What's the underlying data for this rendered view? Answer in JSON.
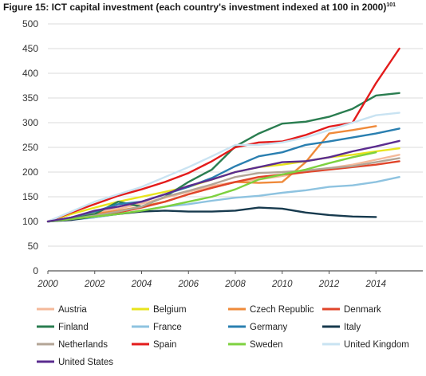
{
  "title": "Figure 15: ICT capital investment (each country's investment indexed at 100 in 2000)",
  "title_footnote": "101",
  "chart_data": {
    "type": "line",
    "title": "Figure 15: ICT capital investment (each country's investment indexed at 100 in 2000)",
    "xlabel": "",
    "ylabel": "",
    "xlim": [
      2000,
      2016
    ],
    "ylim": [
      0,
      500
    ],
    "x_ticks": [
      2000,
      2002,
      2004,
      2006,
      2008,
      2010,
      2012,
      2014
    ],
    "y_ticks": [
      0,
      50,
      100,
      150,
      200,
      250,
      300,
      350,
      400,
      450,
      500
    ],
    "grid": "horizontal",
    "legend_position": "bottom",
    "series": [
      {
        "name": "Austria",
        "color": "#f4b99a",
        "x": [
          2000,
          2001,
          2002,
          2003,
          2004,
          2005,
          2006,
          2007,
          2008,
          2009,
          2010,
          2011,
          2012,
          2013,
          2014,
          2015
        ],
        "y": [
          100,
          108,
          118,
          126,
          136,
          148,
          160,
          172,
          180,
          185,
          192,
          200,
          208,
          215,
          225,
          235
        ]
      },
      {
        "name": "Belgium",
        "color": "#e8e41c",
        "x": [
          2000,
          2001,
          2002,
          2003,
          2004,
          2005,
          2006,
          2007,
          2008,
          2009,
          2010,
          2011,
          2012,
          2013,
          2014,
          2015
        ],
        "y": [
          100,
          115,
          128,
          140,
          150,
          160,
          170,
          185,
          200,
          210,
          215,
          222,
          230,
          235,
          242,
          248
        ]
      },
      {
        "name": "Czech Republic",
        "color": "#ef8a3a",
        "x": [
          2000,
          2001,
          2002,
          2003,
          2004,
          2005,
          2006,
          2007,
          2008,
          2009,
          2010,
          2011,
          2012,
          2013,
          2014
        ],
        "y": [
          100,
          108,
          115,
          122,
          130,
          140,
          155,
          168,
          180,
          178,
          180,
          220,
          278,
          285,
          293
        ]
      },
      {
        "name": "Denmark",
        "color": "#e0452a",
        "x": [
          2000,
          2001,
          2002,
          2003,
          2004,
          2005,
          2006,
          2007,
          2008,
          2009,
          2010,
          2011,
          2012,
          2013,
          2014,
          2015
        ],
        "y": [
          100,
          105,
          112,
          118,
          128,
          140,
          155,
          168,
          180,
          190,
          195,
          200,
          205,
          210,
          215,
          222
        ]
      },
      {
        "name": "Finland",
        "color": "#2a7d50",
        "x": [
          2000,
          2001,
          2002,
          2003,
          2004,
          2005,
          2006,
          2007,
          2008,
          2009,
          2010,
          2011,
          2012,
          2013,
          2014,
          2015
        ],
        "y": [
          100,
          105,
          115,
          140,
          130,
          150,
          180,
          205,
          252,
          278,
          298,
          302,
          312,
          328,
          355,
          360
        ]
      },
      {
        "name": "France",
        "color": "#8ec3e0",
        "x": [
          2000,
          2001,
          2002,
          2003,
          2004,
          2005,
          2006,
          2007,
          2008,
          2009,
          2010,
          2011,
          2012,
          2013,
          2014,
          2015
        ],
        "y": [
          100,
          103,
          108,
          115,
          122,
          130,
          135,
          142,
          148,
          152,
          158,
          163,
          170,
          173,
          180,
          190
        ]
      },
      {
        "name": "Germany",
        "color": "#2a7fb0",
        "x": [
          2000,
          2001,
          2002,
          2003,
          2004,
          2005,
          2006,
          2007,
          2008,
          2009,
          2010,
          2011,
          2012,
          2013,
          2014,
          2015
        ],
        "y": [
          100,
          108,
          120,
          135,
          140,
          155,
          170,
          188,
          212,
          232,
          240,
          255,
          262,
          270,
          278,
          288
        ]
      },
      {
        "name": "Italy",
        "color": "#173a4e",
        "x": [
          2000,
          2001,
          2002,
          2003,
          2004,
          2005,
          2006,
          2007,
          2008,
          2009,
          2010,
          2011,
          2012,
          2013,
          2014
        ],
        "y": [
          100,
          103,
          110,
          115,
          120,
          122,
          120,
          120,
          122,
          128,
          126,
          118,
          113,
          110,
          109
        ]
      },
      {
        "name": "Netherlands",
        "color": "#b3a596",
        "x": [
          2000,
          2001,
          2002,
          2003,
          2004,
          2005,
          2006,
          2007,
          2008,
          2009,
          2010,
          2011,
          2012,
          2013,
          2014,
          2015
        ],
        "y": [
          100,
          105,
          112,
          120,
          130,
          150,
          162,
          175,
          190,
          198,
          200,
          203,
          208,
          212,
          220,
          228
        ]
      },
      {
        "name": "Spain",
        "color": "#e31b1b",
        "x": [
          2000,
          2001,
          2002,
          2003,
          2004,
          2005,
          2006,
          2007,
          2008,
          2009,
          2010,
          2011,
          2012,
          2013,
          2014,
          2015
        ],
        "y": [
          100,
          118,
          135,
          152,
          165,
          180,
          198,
          222,
          250,
          260,
          262,
          275,
          292,
          300,
          380,
          450
        ]
      },
      {
        "name": "Sweden",
        "color": "#7dd13f",
        "x": [
          2000,
          2001,
          2002,
          2003,
          2004,
          2005,
          2006,
          2007,
          2008,
          2009,
          2010,
          2011,
          2012,
          2013,
          2014
        ],
        "y": [
          100,
          105,
          110,
          115,
          122,
          130,
          140,
          150,
          165,
          185,
          195,
          205,
          218,
          230,
          240
        ]
      },
      {
        "name": "United Kingdom",
        "color": "#c9e3f2",
        "x": [
          2000,
          2001,
          2002,
          2003,
          2004,
          2005,
          2006,
          2007,
          2008,
          2009,
          2010,
          2011,
          2012,
          2013,
          2014,
          2015
        ],
        "y": [
          100,
          120,
          140,
          155,
          170,
          190,
          210,
          232,
          255,
          255,
          260,
          270,
          285,
          300,
          315,
          320
        ]
      },
      {
        "name": "United States",
        "color": "#5b2c8f",
        "x": [
          2000,
          2001,
          2002,
          2003,
          2004,
          2005,
          2006,
          2007,
          2008,
          2009,
          2010,
          2011,
          2012,
          2013,
          2014,
          2015
        ],
        "y": [
          100,
          108,
          122,
          130,
          140,
          155,
          172,
          185,
          200,
          210,
          220,
          222,
          230,
          242,
          252,
          263
        ]
      }
    ]
  }
}
